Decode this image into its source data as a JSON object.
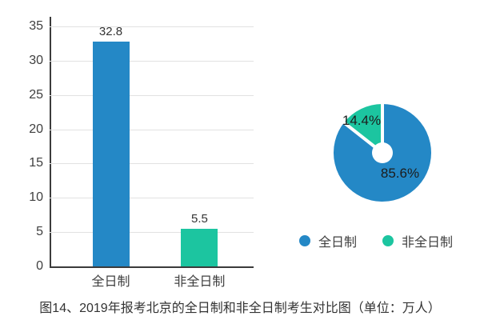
{
  "figure": {
    "caption": "图14、2019年报考北京的全日制和非全日制考生对比图（单位：万人）",
    "unit": "万人"
  },
  "colors": {
    "fulltime_blue": "#2488c6",
    "parttime_green": "#1cc5a0",
    "grid": "#e2e2e2",
    "axis": "#3b3b3b",
    "text": "#333333"
  },
  "legend": {
    "items": [
      {
        "label": "全日制",
        "color": "#2488c6"
      },
      {
        "label": "非全日制",
        "color": "#1cc5a0"
      }
    ]
  },
  "chart_data": [
    {
      "type": "bar",
      "categories": [
        "全日制",
        "非全日制"
      ],
      "values": [
        32.8,
        5.5
      ],
      "value_labels": [
        "32.8",
        "5.5"
      ],
      "colors": [
        "#2488c6",
        "#1cc5a0"
      ],
      "xlabel": "",
      "ylabel": "",
      "ylim": [
        0,
        35
      ],
      "y_ticks": [
        0,
        5,
        10,
        15,
        20,
        25,
        30,
        35
      ],
      "grid": true,
      "legend_position": "none"
    },
    {
      "type": "pie",
      "labels": [
        "全日制",
        "非全日制"
      ],
      "values": [
        85.6,
        14.4
      ],
      "value_labels": [
        "85.6%",
        "14.4%"
      ],
      "colors": [
        "#2488c6",
        "#1cc5a0"
      ],
      "donut": true,
      "start_angle_deg": 0,
      "direction": "clockwise",
      "legend_position": "bottom"
    }
  ]
}
